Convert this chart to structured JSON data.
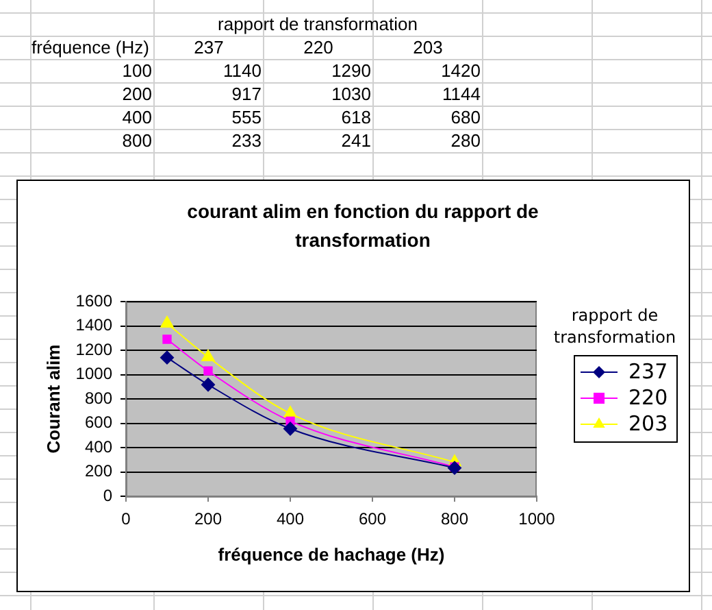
{
  "chart_data": [
    {
      "type": "heatmap",
      "xlabel": "rapport de transformation",
      "ylabel": "fréquence (Hz)",
      "categories": [
        "237",
        "220",
        "203"
      ],
      "y_categories": [
        "100",
        "200",
        "400",
        "800"
      ],
      "cells": [
        [
          1140,
          1290,
          1420
        ],
        [
          917,
          1030,
          1144
        ],
        [
          555,
          618,
          680
        ],
        [
          233,
          241,
          280
        ]
      ],
      "data_labels": true
    },
    {
      "type": "line",
      "title": "courant alim en fonction du rapport de transformation",
      "xlabel": "fréquence de hachage (Hz)",
      "ylabel": "Courant alim",
      "legend_title": "rapport de transformation",
      "x": [
        100,
        200,
        400,
        800
      ],
      "series": [
        {
          "name": "237",
          "color": "#000080",
          "marker": "diamond",
          "values": [
            1140,
            917,
            555,
            233
          ]
        },
        {
          "name": "220",
          "color": "#ff00ff",
          "marker": "square",
          "values": [
            1290,
            1030,
            618,
            241
          ]
        },
        {
          "name": "203",
          "color": "#ffff00",
          "marker": "triangle",
          "values": [
            1420,
            1144,
            680,
            280
          ]
        }
      ],
      "xlim": [
        0,
        1000
      ],
      "xticks": [
        0,
        200,
        400,
        600,
        800,
        1000
      ],
      "ylim": [
        0,
        1600
      ],
      "yticks": [
        0,
        200,
        400,
        600,
        800,
        1000,
        1200,
        1400,
        1600
      ],
      "grid": "y",
      "legend": "right"
    }
  ]
}
